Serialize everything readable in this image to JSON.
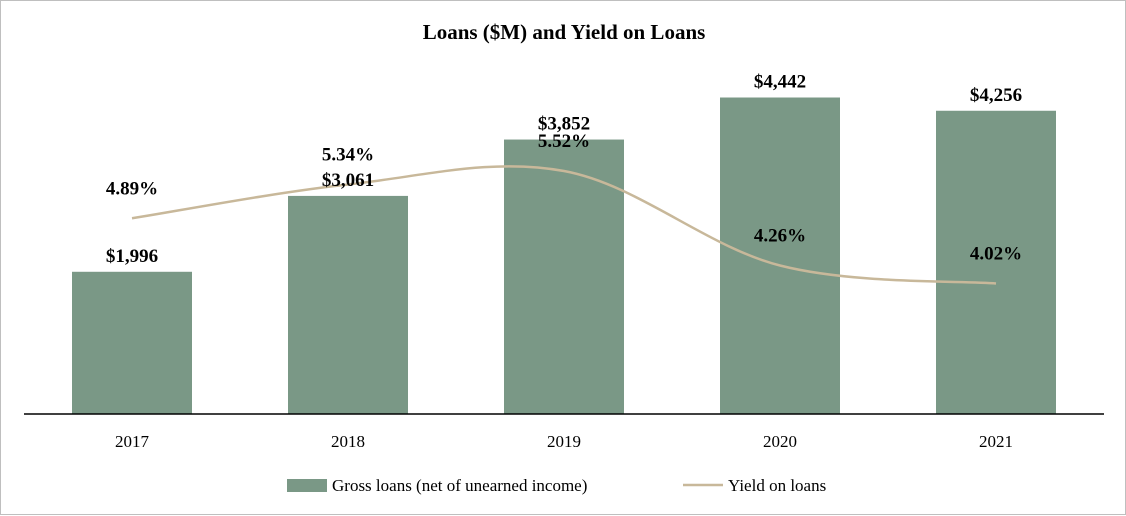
{
  "chart_data": {
    "type": "bar",
    "title": "Loans ($M) and Yield on Loans",
    "categories": [
      "2017",
      "2018",
      "2019",
      "2020",
      "2021"
    ],
    "series": [
      {
        "name": "Gross loans (net of unearned income)",
        "type": "bar",
        "values": [
          1996,
          3061,
          3852,
          4442,
          4256
        ],
        "labels": [
          "$1,996",
          "$3,061",
          "$3,852",
          "$4,442",
          "$4,256"
        ],
        "color": "#7a9886"
      },
      {
        "name": "Yield on loans",
        "type": "line",
        "values": [
          4.89,
          5.34,
          5.52,
          4.26,
          4.02
        ],
        "labels": [
          "4.89%",
          "5.34%",
          "5.52%",
          "4.26%",
          "4.02%"
        ],
        "color": "#c8b89a"
      }
    ],
    "ylim": [
      0,
      4800
    ],
    "y2lim": [
      2.0,
      6.0
    ],
    "grid": false,
    "legend": "bottom"
  }
}
